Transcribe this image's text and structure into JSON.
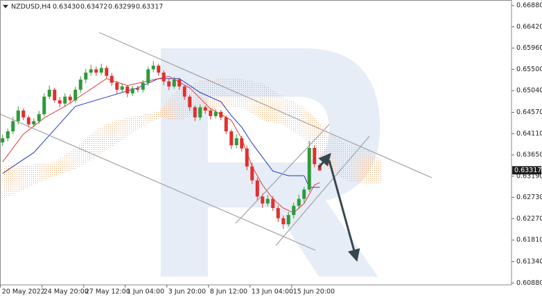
{
  "chart_data": {
    "type": "candlestick",
    "symbol": "NZDUSD,H4",
    "header_values": [
      {
        "value": 0.6343,
        "label": "0.63430"
      },
      {
        "value": 0.63472,
        "label": "0.63472"
      },
      {
        "value": 0.63299,
        "label": "0.63299"
      },
      {
        "value": 0.63317,
        "label": "0.63317"
      }
    ],
    "x": [
      0,
      1,
      2,
      3,
      4,
      5,
      6,
      7,
      8,
      9,
      10,
      11,
      12,
      13,
      14,
      15,
      16,
      17,
      18,
      19,
      20,
      21,
      22,
      23,
      24,
      25,
      26,
      27,
      28,
      29,
      30,
      31,
      32,
      33,
      34,
      35,
      36,
      37,
      38,
      39,
      40,
      41,
      42,
      43,
      44,
      45,
      46,
      47,
      48,
      49,
      50,
      51,
      52,
      53,
      54,
      55,
      56,
      57,
      58,
      59,
      60,
      61
    ],
    "open": [
      0.6392,
      0.6401,
      0.6416,
      0.6438,
      0.6461,
      0.6446,
      0.6431,
      0.6438,
      0.6453,
      0.6491,
      0.6506,
      0.6483,
      0.6476,
      0.6491,
      0.6483,
      0.6506,
      0.6528,
      0.6543,
      0.655,
      0.6543,
      0.6553,
      0.6536,
      0.6521,
      0.6506,
      0.6513,
      0.6498,
      0.6509,
      0.6506,
      0.6521,
      0.655,
      0.6558,
      0.6543,
      0.6524,
      0.6513,
      0.6528,
      0.6513,
      0.6491,
      0.6468,
      0.6446,
      0.6468,
      0.6461,
      0.6449,
      0.6458,
      0.6446,
      0.6416,
      0.6386,
      0.6401,
      0.6379,
      0.634,
      0.631,
      0.6275,
      0.626,
      0.627,
      0.625,
      0.6228,
      0.6215,
      0.6235,
      0.6255,
      0.627,
      0.629,
      0.638,
      0.6343
    ],
    "high": [
      0.6409,
      0.6422,
      0.6447,
      0.647,
      0.6466,
      0.645,
      0.6444,
      0.646,
      0.6498,
      0.6515,
      0.651,
      0.649,
      0.6498,
      0.6496,
      0.6512,
      0.6535,
      0.6551,
      0.656,
      0.6556,
      0.6562,
      0.6558,
      0.6542,
      0.6525,
      0.652,
      0.6516,
      0.6514,
      0.6515,
      0.6527,
      0.6556,
      0.6568,
      0.6562,
      0.6548,
      0.653,
      0.6534,
      0.6532,
      0.6516,
      0.6495,
      0.6472,
      0.6474,
      0.6472,
      0.6466,
      0.6464,
      0.6462,
      0.645,
      0.642,
      0.641,
      0.6406,
      0.6385,
      0.6348,
      0.6316,
      0.6282,
      0.6278,
      0.6276,
      0.6256,
      0.6234,
      0.6242,
      0.6262,
      0.6279,
      0.6296,
      0.6395,
      0.6386,
      0.63472
    ],
    "low": [
      0.6384,
      0.6395,
      0.641,
      0.6431,
      0.644,
      0.6424,
      0.6425,
      0.6432,
      0.6448,
      0.6486,
      0.6478,
      0.6468,
      0.647,
      0.6476,
      0.6478,
      0.65,
      0.652,
      0.6536,
      0.6536,
      0.6538,
      0.653,
      0.6514,
      0.6498,
      0.65,
      0.649,
      0.6492,
      0.65,
      0.65,
      0.6515,
      0.6544,
      0.6536,
      0.6516,
      0.6505,
      0.6508,
      0.6506,
      0.6484,
      0.646,
      0.6438,
      0.644,
      0.6454,
      0.6442,
      0.6444,
      0.644,
      0.641,
      0.6378,
      0.638,
      0.6372,
      0.6332,
      0.6302,
      0.6266,
      0.625,
      0.6254,
      0.6244,
      0.622,
      0.6205,
      0.621,
      0.6228,
      0.6248,
      0.6262,
      0.6285,
      0.6338,
      0.63299
    ],
    "close": [
      0.6401,
      0.6416,
      0.6438,
      0.6461,
      0.6446,
      0.6431,
      0.6438,
      0.6453,
      0.6491,
      0.6506,
      0.6483,
      0.6476,
      0.6491,
      0.6483,
      0.6506,
      0.6528,
      0.6543,
      0.655,
      0.6543,
      0.6553,
      0.6536,
      0.6521,
      0.6506,
      0.6513,
      0.6498,
      0.6509,
      0.6506,
      0.6521,
      0.655,
      0.6558,
      0.6543,
      0.6524,
      0.6513,
      0.6528,
      0.6513,
      0.6491,
      0.6468,
      0.6446,
      0.6468,
      0.6461,
      0.6449,
      0.6458,
      0.6446,
      0.6416,
      0.6386,
      0.6401,
      0.6379,
      0.634,
      0.631,
      0.6275,
      0.626,
      0.627,
      0.625,
      0.6228,
      0.6215,
      0.6235,
      0.6255,
      0.627,
      0.629,
      0.638,
      0.6345,
      0.63317
    ],
    "up_color": "#2e9a3a",
    "down_color": "#e0302f",
    "tenkan": {
      "color": "#e53935",
      "x": [
        0,
        4,
        8,
        12,
        16,
        20,
        24,
        28,
        32,
        36,
        40,
        44,
        46,
        48,
        50,
        52,
        54,
        56,
        58,
        60,
        61
      ],
      "values": [
        0.635,
        0.641,
        0.6445,
        0.647,
        0.65,
        0.653,
        0.6515,
        0.6525,
        0.6535,
        0.651,
        0.6465,
        0.644,
        0.64,
        0.634,
        0.63,
        0.627,
        0.625,
        0.624,
        0.626,
        0.63,
        0.6305
      ]
    },
    "kijun": {
      "color": "#1f35c9",
      "x": [
        0,
        6,
        10,
        14,
        20,
        26,
        30,
        34,
        38,
        42,
        44,
        46,
        48,
        52,
        55,
        58,
        59,
        61
      ],
      "values": [
        0.6325,
        0.637,
        0.642,
        0.647,
        0.649,
        0.651,
        0.653,
        0.653,
        0.65,
        0.648,
        0.645,
        0.6425,
        0.639,
        0.633,
        0.632,
        0.632,
        0.6295,
        0.6295
      ]
    },
    "cloud": {
      "color": "#f0a060",
      "x": [
        0,
        6,
        10,
        14,
        18,
        22,
        26,
        30,
        34,
        38,
        42,
        46,
        50,
        54,
        58,
        62,
        66,
        70,
        73
      ],
      "upper": [
        0.634,
        0.6345,
        0.635,
        0.638,
        0.642,
        0.644,
        0.645,
        0.646,
        0.651,
        0.6525,
        0.653,
        0.653,
        0.652,
        0.649,
        0.647,
        0.642,
        0.639,
        0.6375,
        0.6355
      ],
      "lower": [
        0.627,
        0.63,
        0.632,
        0.6335,
        0.636,
        0.639,
        0.642,
        0.6445,
        0.644,
        0.6455,
        0.647,
        0.647,
        0.644,
        0.643,
        0.64,
        0.634,
        0.631,
        0.63,
        0.6305
      ]
    },
    "last_price": {
      "value": 0.63317,
      "label": "0.63317"
    },
    "xlim": [
      -0.5,
      97.9
    ],
    "ylim": [
      0.6084,
      0.67
    ],
    "xticks": [
      {
        "value": -0.4,
        "label": "20 May 2022"
      },
      {
        "value": 7.6,
        "label": "24 May 20:00"
      },
      {
        "value": 15.6,
        "label": "27 May 12:00"
      },
      {
        "value": 23.6,
        "label": "1 Jun 04:00"
      },
      {
        "value": 31.6,
        "label": "3 Jun 20:00"
      },
      {
        "value": 39.6,
        "label": "8 Jun 12:00"
      },
      {
        "value": 47.6,
        "label": "13 Jun 04:00"
      },
      {
        "value": 55.6,
        "label": "15 Jun 20:00"
      }
    ],
    "yticks": [
      {
        "value": 0.6688,
        "label": "0.66880"
      },
      {
        "value": 0.6642,
        "label": "0.66420"
      },
      {
        "value": 0.6596,
        "label": "0.65960"
      },
      {
        "value": 0.655,
        "label": "0.65500"
      },
      {
        "value": 0.6504,
        "label": "0.65040"
      },
      {
        "value": 0.6457,
        "label": "0.64570"
      },
      {
        "value": 0.6411,
        "label": "0.64110"
      },
      {
        "value": 0.6365,
        "label": "0.63650"
      },
      {
        "value": 0.6319,
        "label": "0.63190"
      },
      {
        "value": 0.6273,
        "label": "0.62730"
      },
      {
        "value": 0.6227,
        "label": "0.62270"
      },
      {
        "value": 0.6181,
        "label": "0.61810"
      },
      {
        "value": 0.6134,
        "label": "0.61340"
      },
      {
        "value": 0.6088,
        "label": "0.60880"
      }
    ],
    "grid": false
  }
}
